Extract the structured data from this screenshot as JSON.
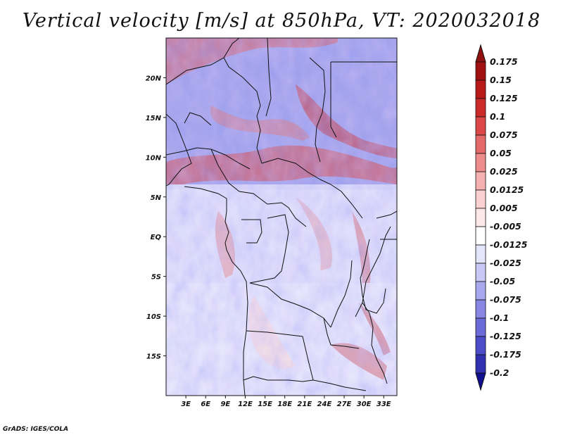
{
  "title": "Vertical velocity [m/s] at 850hPa, VT: 2020032018",
  "credit": "GrADS: IGES/COLA",
  "map": {
    "lon_range": [
      0,
      35
    ],
    "lat_range": [
      -20,
      25
    ],
    "lat_ticks": [
      {
        "value": 20,
        "label": "20N"
      },
      {
        "value": 15,
        "label": "15N"
      },
      {
        "value": 10,
        "label": "10N"
      },
      {
        "value": 5,
        "label": "5N"
      },
      {
        "value": 0,
        "label": "EQ"
      },
      {
        "value": -5,
        "label": "5S"
      },
      {
        "value": -10,
        "label": "10S"
      },
      {
        "value": -15,
        "label": "15S"
      }
    ],
    "lon_ticks": [
      {
        "value": 3,
        "label": "3E"
      },
      {
        "value": 6,
        "label": "6E"
      },
      {
        "value": 9,
        "label": "9E"
      },
      {
        "value": 12,
        "label": "12E"
      },
      {
        "value": 15,
        "label": "15E"
      },
      {
        "value": 18,
        "label": "18E"
      },
      {
        "value": 21,
        "label": "21E"
      },
      {
        "value": 24,
        "label": "24E"
      },
      {
        "value": 27,
        "label": "27E"
      },
      {
        "value": 30,
        "label": "30E"
      },
      {
        "value": 33,
        "label": "33E"
      }
    ]
  },
  "colorbar": {
    "levels": [
      {
        "label": "0.175",
        "color": "#a01010"
      },
      {
        "label": "0.15",
        "color": "#b81818"
      },
      {
        "label": "0.125",
        "color": "#cc2a2a"
      },
      {
        "label": "0.1",
        "color": "#dc4848"
      },
      {
        "label": "0.075",
        "color": "#e46a6a"
      },
      {
        "label": "0.05",
        "color": "#ee8c8c"
      },
      {
        "label": "0.025",
        "color": "#f5b0b0"
      },
      {
        "label": "0.0125",
        "color": "#fad0d0"
      },
      {
        "label": "0.005",
        "color": "#fde8e8"
      },
      {
        "label": "-0.005",
        "color": "#ffffff"
      },
      {
        "label": "-0.0125",
        "color": "#e4e4fb"
      },
      {
        "label": "-0.025",
        "color": "#c8c8f5"
      },
      {
        "label": "-0.05",
        "color": "#a8a8ee"
      },
      {
        "label": "-0.075",
        "color": "#8888e4"
      },
      {
        "label": "-0.1",
        "color": "#6a6ad8"
      },
      {
        "label": "-0.125",
        "color": "#4c4cc8"
      },
      {
        "label": "-0.175",
        "color": "#3030b0"
      },
      {
        "label": "-0.2",
        "color": "#1c1c98"
      }
    ],
    "top_arrow_color": "#901010",
    "bottom_arrow_color": "#101090"
  }
}
